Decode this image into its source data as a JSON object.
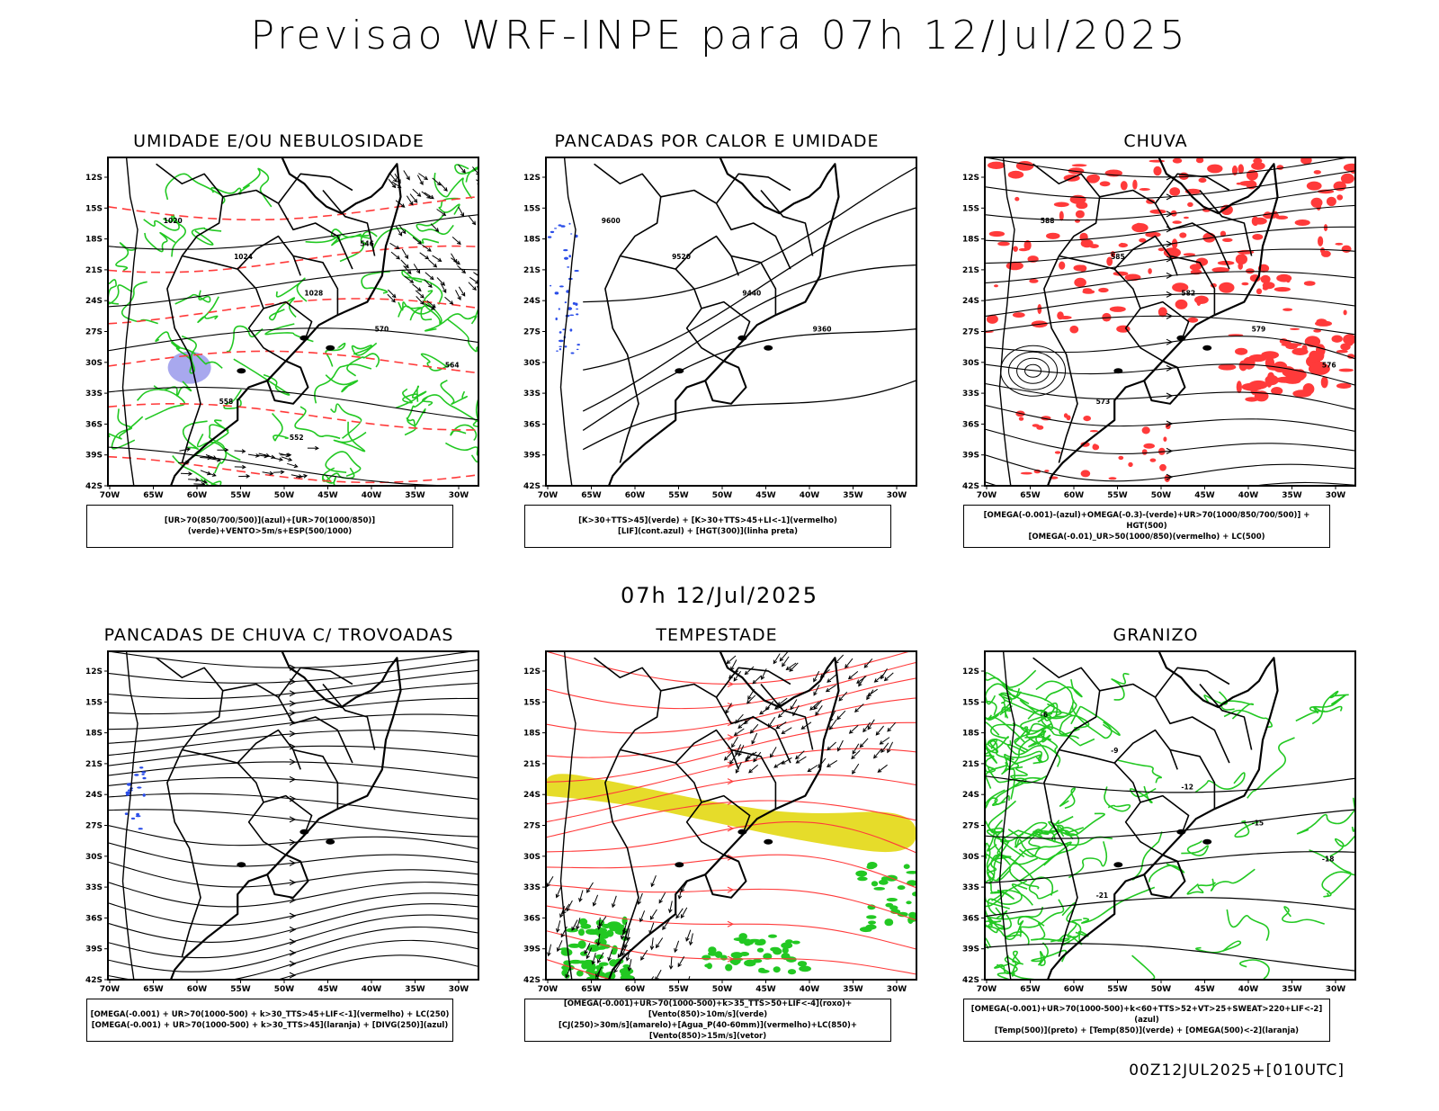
{
  "header": {
    "title": "Previsao WRF-INPE  para 07h 12/Jul/2025"
  },
  "mid_date": "07h 12/Jul/2025",
  "footer_run": "00Z12JUL2025+[010UTC]",
  "axes": {
    "lat_ticks": [
      "12S",
      "15S",
      "18S",
      "21S",
      "24S",
      "27S",
      "30S",
      "33S",
      "36S",
      "39S",
      "42S"
    ],
    "lon_ticks": [
      "70W",
      "65W",
      "60W",
      "55W",
      "50W",
      "45W",
      "40W",
      "35W",
      "30W"
    ]
  },
  "colors": {
    "red": "#ff3a3a",
    "green": "#22c822",
    "blue": "#2a4de8",
    "yellow": "#e6dc2a",
    "lavender": "#a8a8ee",
    "black": "#000000"
  },
  "panels": [
    {
      "id": "umidade",
      "title": "UMIDADE E/OU NEBULOSIDADE",
      "legend": [
        "[UR>70(850/700/500)](azul)+[UR>70(1000/850)](verde)+VENTO>5m/s+ESP(500/1000)"
      ],
      "contour_labels": [
        "1020",
        "1024",
        "1028",
        "570",
        "564",
        "558",
        "552",
        "546"
      ]
    },
    {
      "id": "pancadas-calor",
      "title": "PANCADAS POR CALOR E UMIDADE",
      "legend": [
        "[K>30+TTS>45](verde) + [K>30+TTS>45+LI<-1](vermelho)",
        "[LIF](cont.azul) + [HGT(300)](linha preta)"
      ],
      "contour_labels": [
        "9600",
        "9520",
        "9440",
        "9360"
      ]
    },
    {
      "id": "chuva",
      "title": "CHUVA",
      "legend": [
        "[OMEGA(-0.001)-(azul)+OMEGA(-0.3)-(verde)+UR>70(1000/850/700/500)] + HGT(500)",
        "[OMEGA(-0.01)_UR>50(1000/850)(vermelho) + LC(500)"
      ],
      "contour_labels": [
        "588",
        "585",
        "582",
        "579",
        "576",
        "573"
      ]
    },
    {
      "id": "trovoadas",
      "title": "PANCADAS DE CHUVA C/ TROVOADAS",
      "legend": [
        "[OMEGA(-0.001) + UR>70(1000-500) + k>30_TTS>45+LIF<-1](vermelho) + LC(250)",
        "[OMEGA(-0.001) + UR>70(1000-500) + k>30_TTS>45](laranja) + [DIVG(250)](azul)"
      ],
      "contour_labels": []
    },
    {
      "id": "tempestade",
      "title": "TEMPESTADE",
      "legend": [
        "[OMEGA(-0.001)+UR>70(1000-500)+k>35_TTS>50+LIF<-4](roxo)+[Vento(850)>10m/s](verde)",
        "[CJ(250)>30m/s](amarelo)+[Agua_P(40-60mm)](vermelho)+LC(850)+[Vento(850)>15m/s](vetor)"
      ],
      "contour_labels": []
    },
    {
      "id": "granizo",
      "title": "GRANIZO",
      "legend": [
        "[OMEGA(-0.001)+UR>70(1000-500)+k<60+TTS>52+VT>25+SWEAT>220+LIF<-2](azul)",
        "[Temp(500)](preto) + [Temp(850)](verde) + [OMEGA(500)<-2](laranja)"
      ],
      "contour_labels": [
        "-6",
        "-9",
        "-12",
        "-15",
        "-18",
        "-21"
      ]
    }
  ]
}
